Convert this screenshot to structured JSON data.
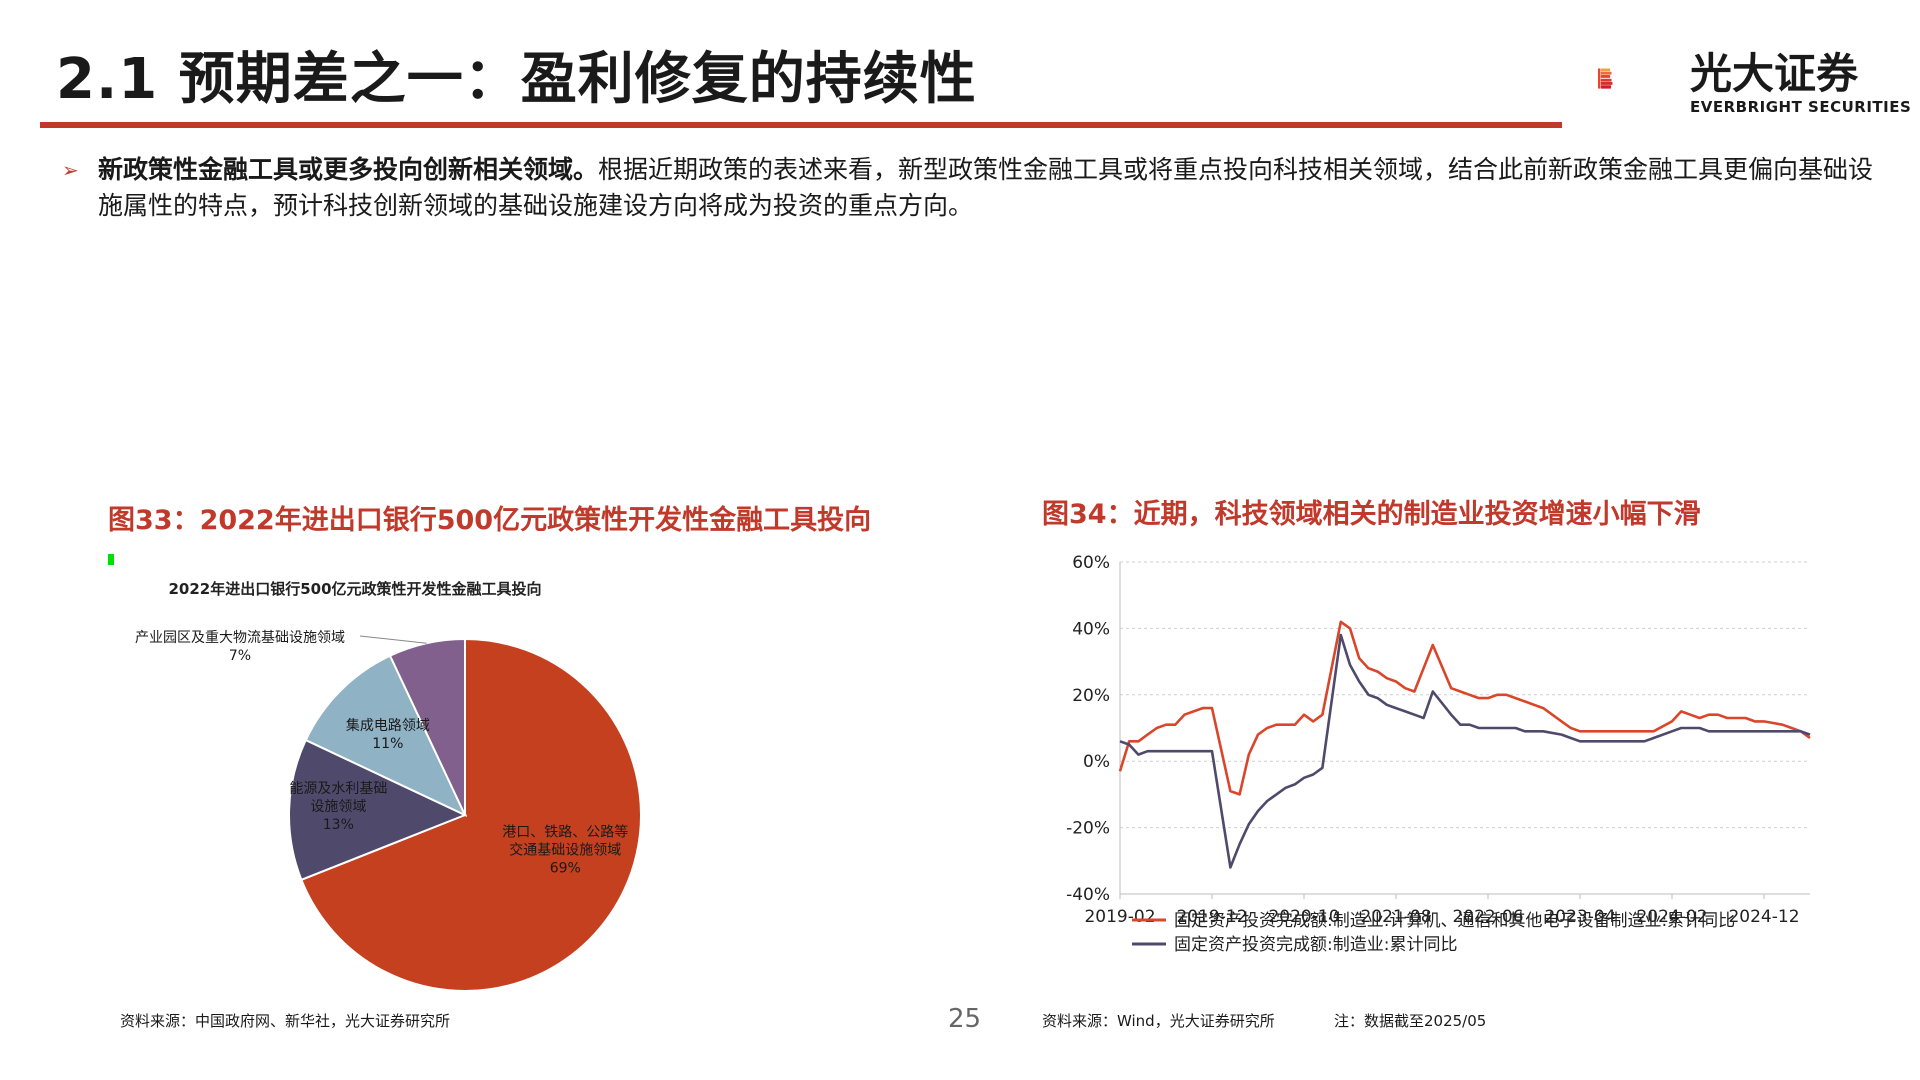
{
  "slide": {
    "title": "2.1 预期差之一：盈利修复的持续性",
    "page_number": "25",
    "logo": {
      "cn": "光大证券",
      "en": "EVERBRIGHT SECURITIES"
    }
  },
  "bullet": {
    "arrow": "➢",
    "bold": "新政策性金融工具或更多投向创新相关领域。",
    "text": "根据近期政策的表述来看，新型政策性金融工具或将重点投向科技相关领域，结合此前新政策金融工具更偏向基础设施属性的特点，预计科技创新领域的基础设施建设方向将成为投资的重点方向。"
  },
  "figure33": {
    "caption": "图33：2022年进出口银行500亿元政策性开发性金融工具投向",
    "source": "资料来源：中国政府网、新华社，光大证券研究所"
  },
  "figure34": {
    "caption": "图34：近期，科技领域相关的制造业投资增速小幅下滑",
    "source": "资料来源：Wind，光大证券研究所",
    "note": "注：数据截至2025/05"
  },
  "chart_data": [
    {
      "type": "pie",
      "title": "2022年进出口银行500亿元政策性开发性金融工具投向",
      "slices": [
        {
          "label": "港口、铁路、公路等交通基础设施领域",
          "label_lines": [
            "港口、铁路、公路等",
            "交通基础设施领域"
          ],
          "value": 69,
          "pct": "69%",
          "color": "#c4401f"
        },
        {
          "label": "能源及水利基础设施领域",
          "label_lines": [
            "能源及水利基础",
            "设施领域"
          ],
          "value": 13,
          "pct": "13%",
          "color": "#4f4a6b"
        },
        {
          "label": "集成电路领域",
          "label_lines": [
            "集成电路领域"
          ],
          "value": 11,
          "pct": "11%",
          "color": "#8fb2c4"
        },
        {
          "label": "产业园区及重大物流基础设施领域",
          "label_lines": [
            "产业园区及重大物流基础设施领域"
          ],
          "value": 7,
          "pct": "7%",
          "color": "#82608d"
        }
      ]
    },
    {
      "type": "line",
      "x_ticks": [
        "2019-02",
        "2019-12",
        "2020-10",
        "2021-08",
        "2022-06",
        "2023-04",
        "2024-02",
        "2024-12"
      ],
      "y_ticks": [
        "60%",
        "40%",
        "20%",
        "0%",
        "-20%",
        "-40%"
      ],
      "ylim": [
        -40,
        60
      ],
      "x_range": [
        "2019-02",
        "2025-05"
      ],
      "legend_position": "bottom",
      "series": [
        {
          "name": "固定资产投资完成额:制造业:计算机、通信和其他电子设备制造业:累计同比",
          "color": "#d9462a",
          "x": [
            "2019-02",
            "2019-03",
            "2019-04",
            "2019-05",
            "2019-06",
            "2019-07",
            "2019-08",
            "2019-09",
            "2019-10",
            "2019-11",
            "2019-12",
            "2020-02",
            "2020-03",
            "2020-04",
            "2020-05",
            "2020-06",
            "2020-07",
            "2020-08",
            "2020-09",
            "2020-10",
            "2020-11",
            "2020-12",
            "2021-02",
            "2021-03",
            "2021-04",
            "2021-05",
            "2021-06",
            "2021-07",
            "2021-08",
            "2021-09",
            "2021-10",
            "2021-11",
            "2021-12",
            "2022-02",
            "2022-03",
            "2022-04",
            "2022-05",
            "2022-06",
            "2022-07",
            "2022-08",
            "2022-09",
            "2022-10",
            "2022-11",
            "2022-12",
            "2023-02",
            "2023-03",
            "2023-04",
            "2023-05",
            "2023-06",
            "2023-07",
            "2023-08",
            "2023-09",
            "2023-10",
            "2023-11",
            "2023-12",
            "2024-02",
            "2024-03",
            "2024-04",
            "2024-05",
            "2024-06",
            "2024-07",
            "2024-08",
            "2024-09",
            "2024-10",
            "2024-11",
            "2024-12",
            "2025-02",
            "2025-03",
            "2025-04",
            "2025-05"
          ],
          "y": [
            -3,
            6,
            6,
            8,
            10,
            11,
            11,
            14,
            15,
            16,
            16,
            -9,
            -10,
            2,
            8,
            10,
            11,
            11,
            11,
            14,
            12,
            14,
            42,
            40,
            31,
            28,
            27,
            25,
            24,
            22,
            21,
            28,
            35,
            22,
            21,
            20,
            19,
            19,
            20,
            20,
            19,
            18,
            17,
            16,
            12,
            10,
            9,
            9,
            9,
            9,
            9,
            9,
            9,
            9,
            9,
            12,
            15,
            14,
            13,
            14,
            14,
            13,
            13,
            13,
            12,
            12,
            11,
            10,
            9,
            7
          ]
        },
        {
          "name": "固定资产投资完成额:制造业:累计同比",
          "color": "#4f4a6b",
          "x": [
            "2019-02",
            "2019-03",
            "2019-04",
            "2019-05",
            "2019-06",
            "2019-07",
            "2019-08",
            "2019-09",
            "2019-10",
            "2019-11",
            "2019-12",
            "2020-02",
            "2020-03",
            "2020-04",
            "2020-05",
            "2020-06",
            "2020-07",
            "2020-08",
            "2020-09",
            "2020-10",
            "2020-11",
            "2020-12",
            "2021-02",
            "2021-03",
            "2021-04",
            "2021-05",
            "2021-06",
            "2021-07",
            "2021-08",
            "2021-09",
            "2021-10",
            "2021-11",
            "2021-12",
            "2022-02",
            "2022-03",
            "2022-04",
            "2022-05",
            "2022-06",
            "2022-07",
            "2022-08",
            "2022-09",
            "2022-10",
            "2022-11",
            "2022-12",
            "2023-02",
            "2023-03",
            "2023-04",
            "2023-05",
            "2023-06",
            "2023-07",
            "2023-08",
            "2023-09",
            "2023-10",
            "2023-11",
            "2023-12",
            "2024-02",
            "2024-03",
            "2024-04",
            "2024-05",
            "2024-06",
            "2024-07",
            "2024-08",
            "2024-09",
            "2024-10",
            "2024-11",
            "2024-12",
            "2025-02",
            "2025-03",
            "2025-04",
            "2025-05"
          ],
          "y": [
            6,
            5,
            2,
            3,
            3,
            3,
            3,
            3,
            3,
            3,
            3,
            -32,
            -25,
            -19,
            -15,
            -12,
            -10,
            -8,
            -7,
            -5,
            -4,
            -2,
            38,
            29,
            24,
            20,
            19,
            17,
            16,
            15,
            14,
            13,
            21,
            14,
            11,
            11,
            10,
            10,
            10,
            10,
            10,
            9,
            9,
            9,
            8,
            7,
            6,
            6,
            6,
            6,
            6,
            6,
            6,
            6,
            7,
            9,
            10,
            10,
            10,
            9,
            9,
            9,
            9,
            9,
            9,
            9,
            9,
            9,
            9,
            8
          ]
        }
      ]
    }
  ]
}
